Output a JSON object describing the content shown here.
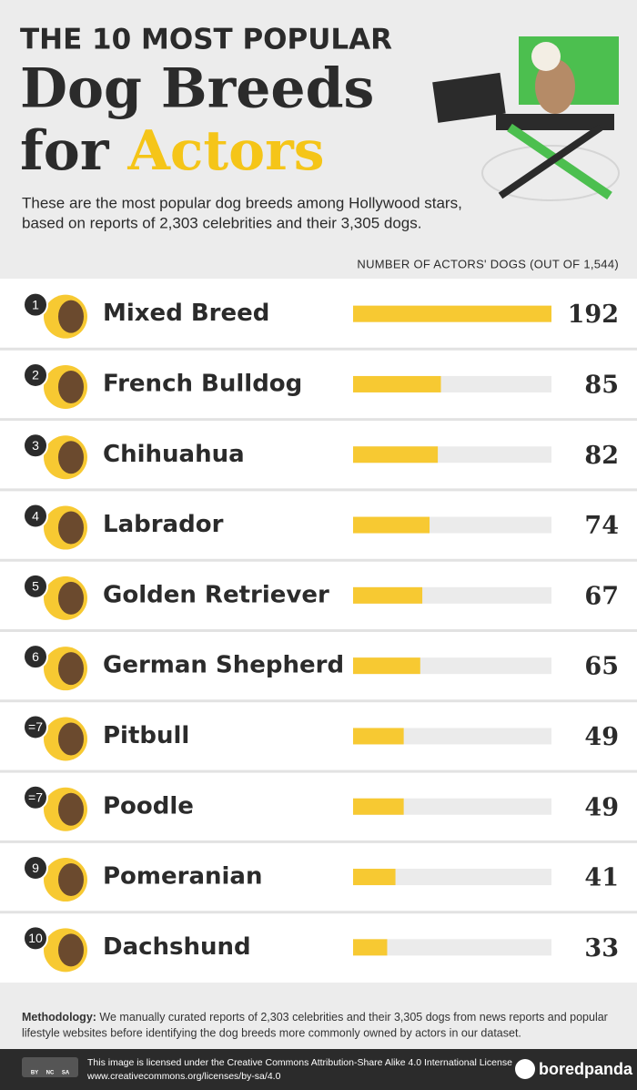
{
  "header": {
    "kicker": "THE 10 MOST POPULAR",
    "title": "Dog Breeds",
    "title_for": "for",
    "title_actors": "Actors",
    "description_lines": [
      "These are the most popular dog breeds among Hollywood stars,",
      "based on reports of 2,303 celebrities and their 3,305 dogs."
    ]
  },
  "chart_data": {
    "type": "bar",
    "orientation": "horizontal",
    "axis_label": "NUMBER OF ACTORS' DOGS (OUT OF 1,544)",
    "ranks": [
      "1",
      "2",
      "3",
      "4",
      "5",
      "6",
      "=7",
      "=7",
      "9",
      "10"
    ],
    "categories": [
      "Mixed Breed",
      "French Bulldog",
      "Chihuahua",
      "Labrador",
      "Golden Retriever",
      "German Shepherd",
      "Pitbull",
      "Poodle",
      "Pomeranian",
      "Dachshund"
    ],
    "values": [
      192,
      85,
      82,
      74,
      67,
      65,
      49,
      49,
      41,
      33
    ],
    "color": "#f7c932",
    "track_color": "#ebebeb",
    "xlim": [
      0,
      192
    ]
  },
  "footer": {
    "methodology_label": "Methodology:",
    "methodology_lines": [
      "We manually curated reports of 2,303 celebrities and their 3,305 dogs from news reports and popular",
      "lifestyle websites before identifying the dog breeds more commonly owned by actors in our dataset."
    ],
    "license_lines": [
      "This image is licensed under the Creative Commons Attribution-Share Alike 4.0 International License",
      "www.creativecommons.org/licenses/by-sa/4.0"
    ],
    "cc_labels": [
      "BY",
      "NC",
      "SA"
    ],
    "logo": "boredpanda"
  }
}
